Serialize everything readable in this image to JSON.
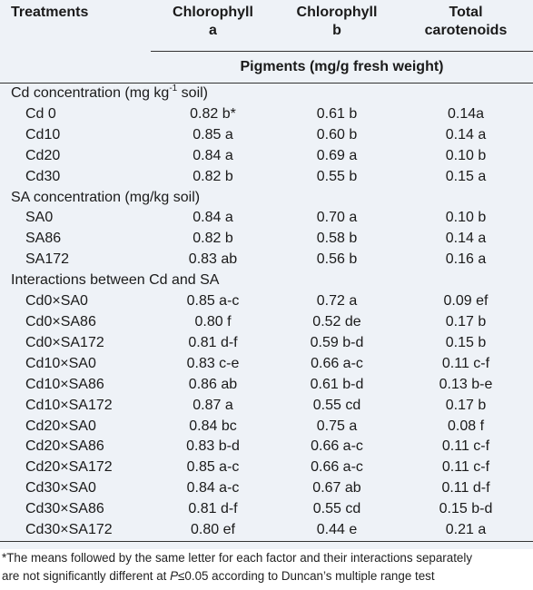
{
  "header": {
    "treatments": "Treatments",
    "chl_a_line1": "Chlorophyll",
    "chl_a_line2": "a",
    "chl_b_line1": "Chlorophyll",
    "chl_b_line2": "b",
    "car_line1": "Total",
    "car_line2": "carotenoids",
    "pigments": "Pigments (mg/g fresh weight)"
  },
  "groups": {
    "cd": {
      "label_pre": "Cd concentration (mg kg",
      "label_sup": "-1",
      "label_post": " soil)"
    },
    "sa": {
      "label": "SA concentration (mg/kg soil)"
    },
    "inter": {
      "label": "Interactions between Cd and SA"
    }
  },
  "cd_rows": [
    {
      "name": "Cd 0",
      "chl_a": "0.82 b*",
      "chl_b": "0.61 b",
      "car": "0.14a"
    },
    {
      "name": "Cd10",
      "chl_a": "0.85 a",
      "chl_b": "0.60 b",
      "car": "0.14 a"
    },
    {
      "name": "Cd20",
      "chl_a": "0.84 a",
      "chl_b": "0.69 a",
      "car": "0.10 b"
    },
    {
      "name": "Cd30",
      "chl_a": "0.82 b",
      "chl_b": "0.55 b",
      "car": "0.15 a"
    }
  ],
  "sa_rows": [
    {
      "name": "SA0",
      "chl_a": "0.84 a",
      "chl_b": "0.70 a",
      "car": "0.10 b"
    },
    {
      "name": "SA86",
      "chl_a": "0.82 b",
      "chl_b": "0.58 b",
      "car": "0.14 a"
    },
    {
      "name": "SA172",
      "chl_a": "0.83 ab",
      "chl_b": "0.56 b",
      "car": "0.16 a"
    }
  ],
  "inter_rows": [
    {
      "name": "Cd0×SA0",
      "chl_a": "0.85 a-c",
      "chl_b": "0.72 a",
      "car": "0.09 ef"
    },
    {
      "name": "Cd0×SA86",
      "chl_a": "0.80 f",
      "chl_b": "0.52 de",
      "car": "0.17 b"
    },
    {
      "name": "Cd0×SA172",
      "chl_a": "0.81 d-f",
      "chl_b": "0.59 b-d",
      "car": "0.15 b"
    },
    {
      "name": "Cd10×SA0",
      "chl_a": "0.83 c-e",
      "chl_b": "0.66 a-c",
      "car": "0.11 c-f"
    },
    {
      "name": "Cd10×SA86",
      "chl_a": "0.86 ab",
      "chl_b": "0.61 b-d",
      "car": "0.13 b-e"
    },
    {
      "name": "Cd10×SA172",
      "chl_a": "0.87 a",
      "chl_b": "0.55 cd",
      "car": "0.17 b"
    },
    {
      "name": "Cd20×SA0",
      "chl_a": "0.84 bc",
      "chl_b": "0.75 a",
      "car": "0.08 f"
    },
    {
      "name": "Cd20×SA86",
      "chl_a": "0.83 b-d",
      "chl_b": "0.66 a-c",
      "car": "0.11 c-f"
    },
    {
      "name": "Cd20×SA172",
      "chl_a": "0.85 a-c",
      "chl_b": "0.66 a-c",
      "car": "0.11 c-f"
    },
    {
      "name": "Cd30×SA0",
      "chl_a": "0.84 a-c",
      "chl_b": "0.67 ab",
      "car": "0.11 d-f"
    },
    {
      "name": "Cd30×SA86",
      "chl_a": "0.81 d-f",
      "chl_b": "0.55 cd",
      "car": "0.15 b-d"
    },
    {
      "name": "Cd30×SA172",
      "chl_a": "0.80 ef",
      "chl_b": "0.44 e",
      "car": "0.21 a"
    }
  ],
  "footnote": {
    "line1": "*The means followed by the same letter for each factor and their interactions separately",
    "line2_pre": "are not significantly different at ",
    "line2_p": "P",
    "line2_post": "≤0.05 according to Duncan’s multiple range test"
  }
}
